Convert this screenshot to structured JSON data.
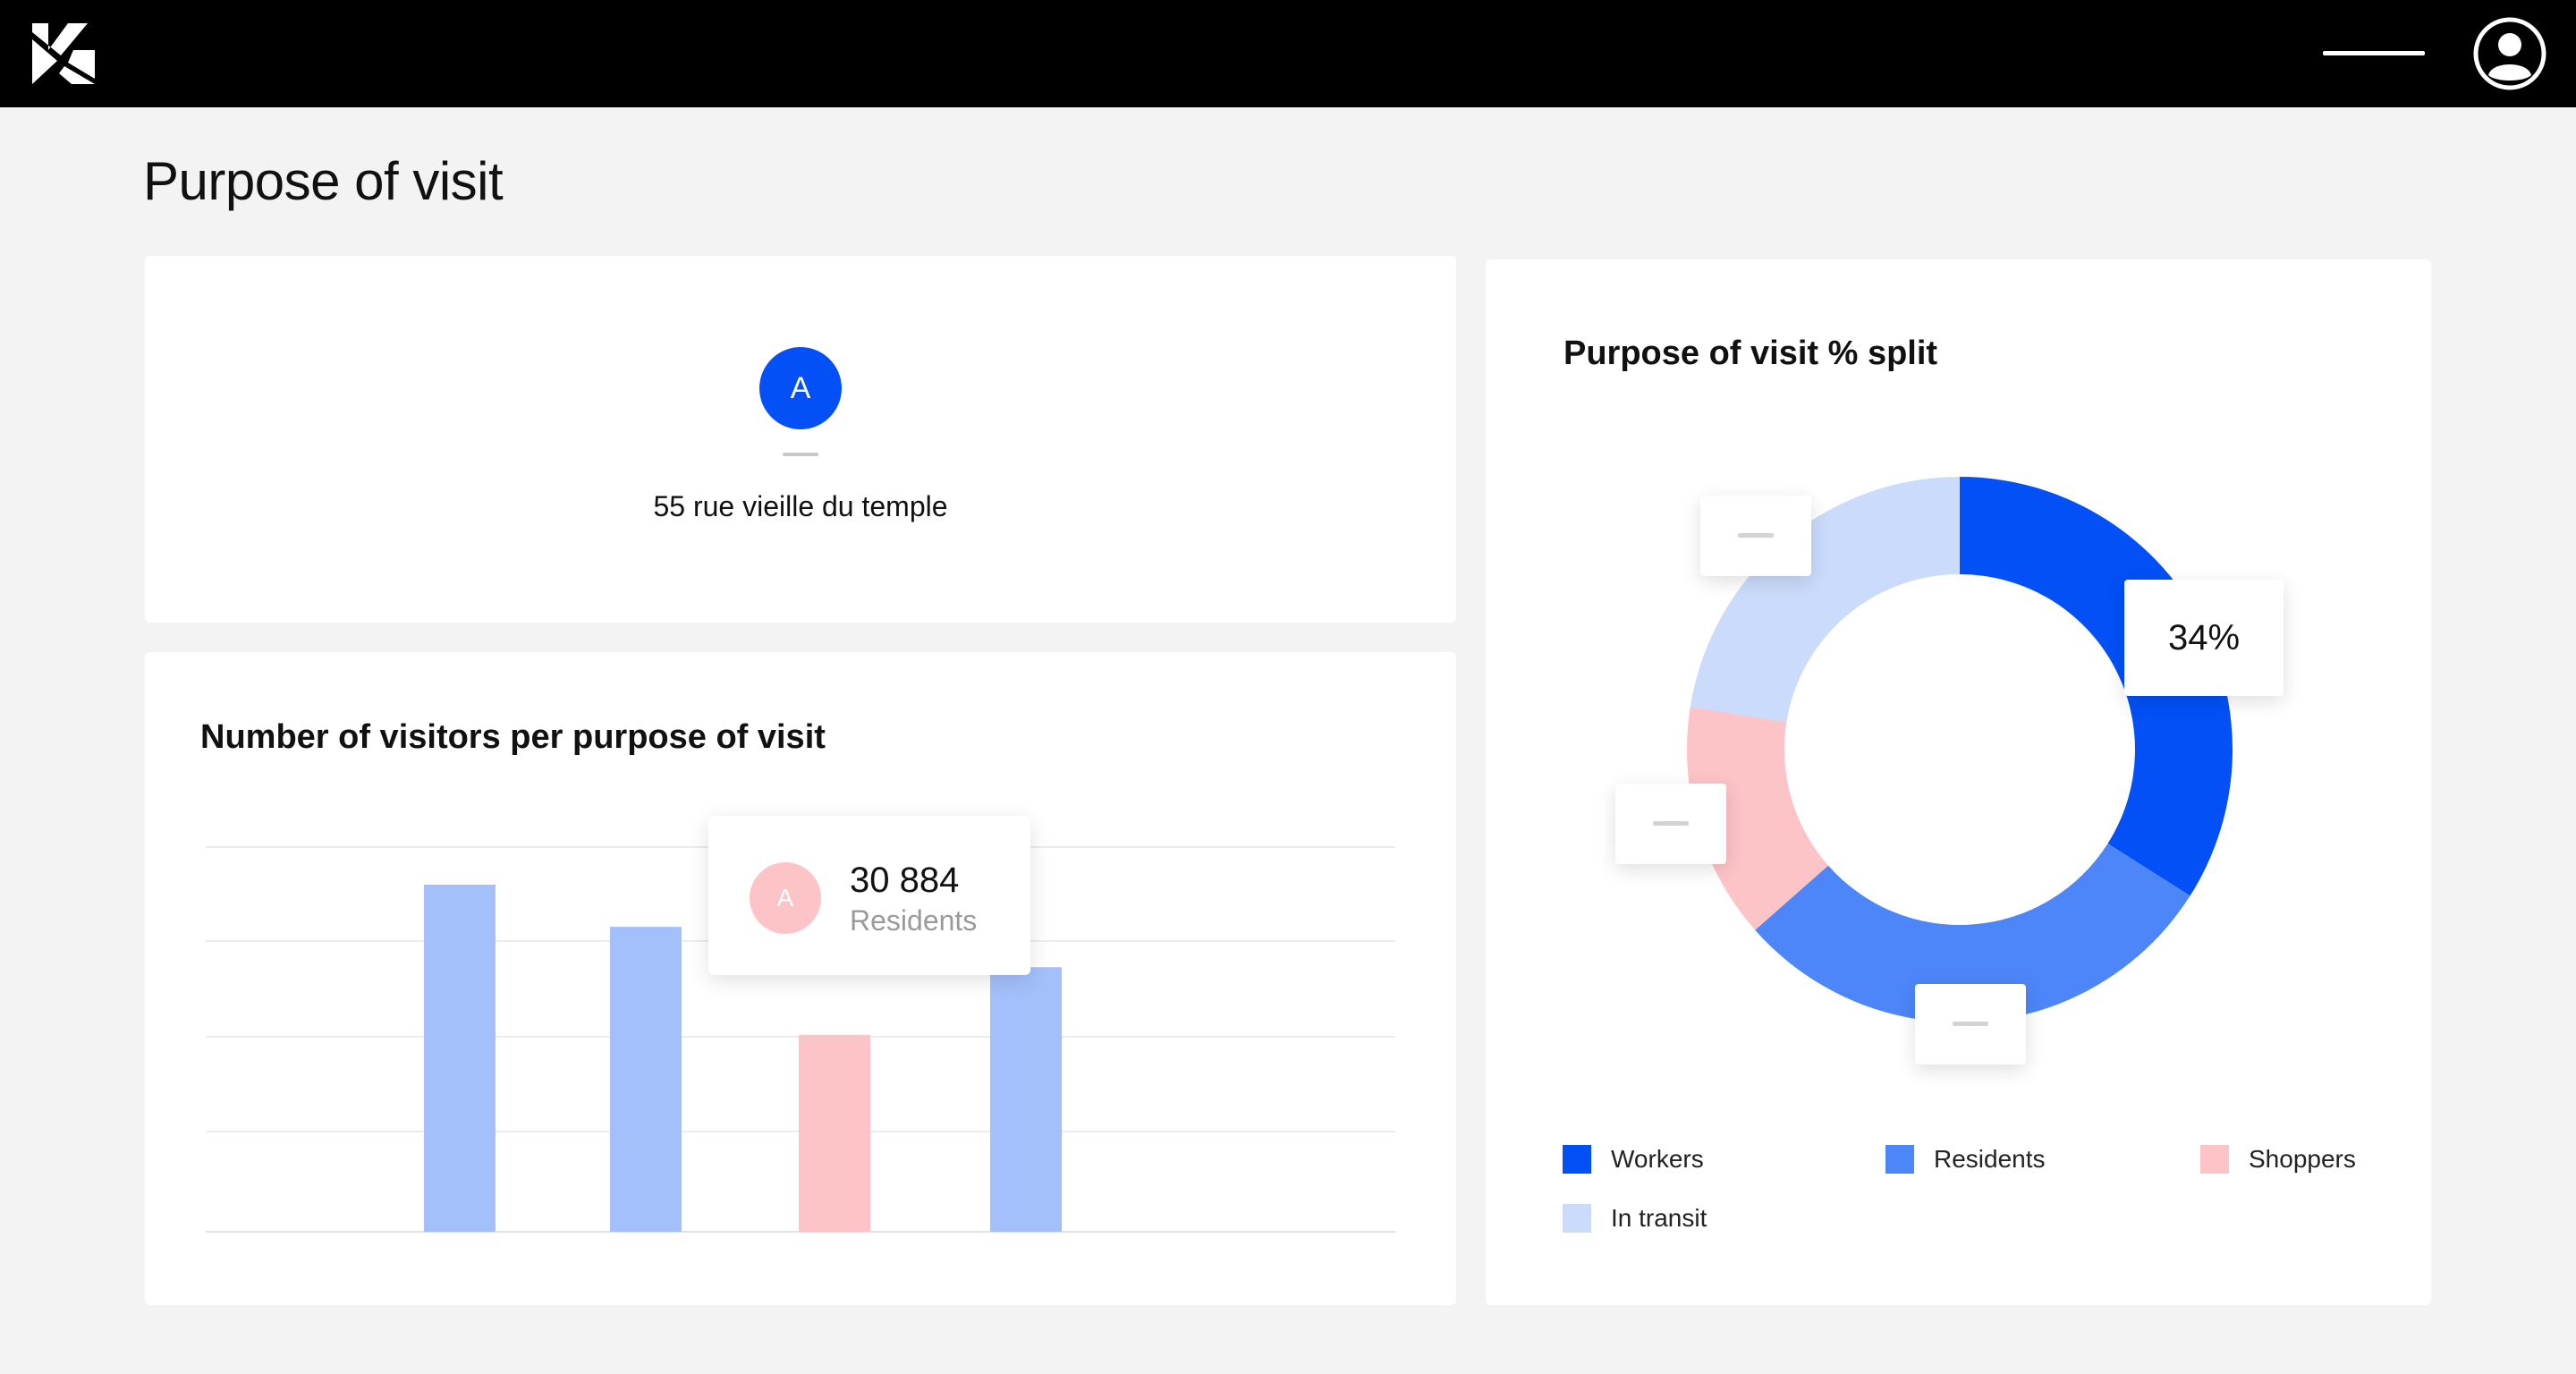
{
  "page": {
    "title": "Purpose of visit"
  },
  "header": {
    "logo_icon": "brand-logo-icon",
    "menu_icon": "menu-icon",
    "profile_icon": "user-profile-icon"
  },
  "location_card": {
    "badge_letter": "A",
    "address": "55 rue vieille du temple",
    "badge_color": "#0250f6"
  },
  "bar_card": {
    "title": "Number of visitors per purpose of visit",
    "tooltip": {
      "badge_letter": "A",
      "value": "30 884",
      "label": "Residents"
    }
  },
  "donut_card": {
    "title": "Purpose of visit % split",
    "callout_percent": "34%"
  },
  "legend": [
    {
      "label": "Workers",
      "color": "#0250f6"
    },
    {
      "label": "Residents",
      "color": "#4d86f8"
    },
    {
      "label": "Shoppers",
      "color": "#fcc4c6"
    },
    {
      "label": "In transit",
      "color": "#cadbfb"
    }
  ],
  "chart_data": [
    {
      "type": "bar",
      "title": "Number of visitors per purpose of visit",
      "categories": [
        "",
        "",
        "",
        ""
      ],
      "values": [
        37,
        32.5,
        21,
        28.2
      ],
      "colors": [
        "#a3c0fb",
        "#a3c0fb",
        "#fcc4c6",
        "#a3c0fb"
      ],
      "ylim": [
        0,
        41
      ],
      "grid": true,
      "highlighted": {
        "value": "30 884",
        "label": "Residents"
      }
    },
    {
      "type": "pie",
      "title": "Purpose of visit % split",
      "donut": true,
      "labels": [
        "Workers",
        "Residents",
        "Shoppers",
        "In transit"
      ],
      "values": [
        34,
        29.5,
        14,
        22.5
      ],
      "colors": [
        "#0250f6",
        "#4d86f8",
        "#fcc4c6",
        "#cadbfb"
      ],
      "highlighted_label": "34%"
    }
  ]
}
